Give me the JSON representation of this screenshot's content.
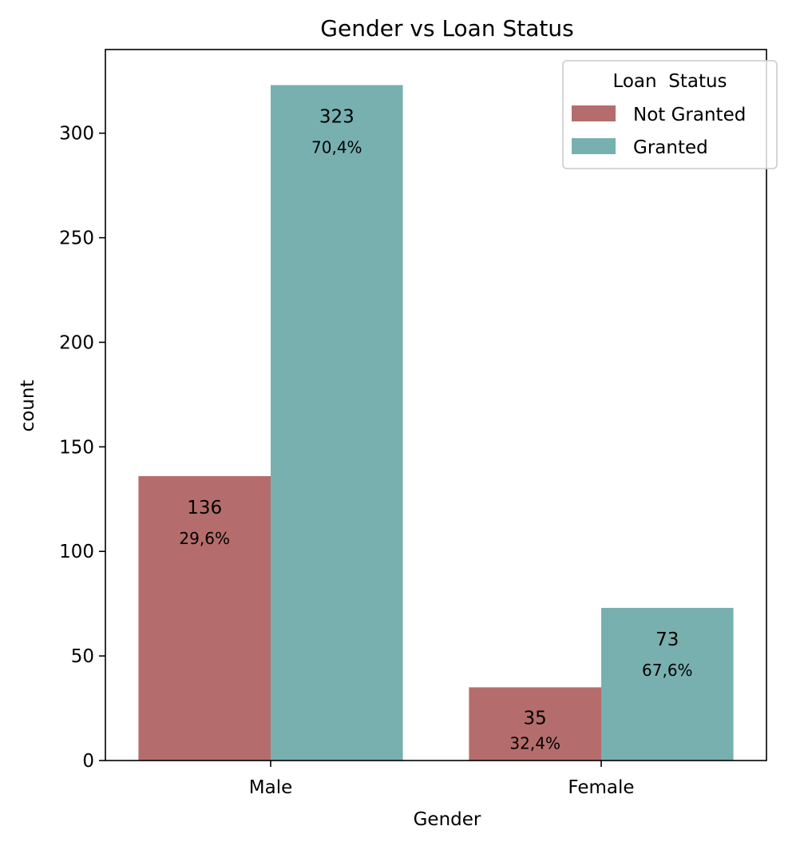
{
  "chart_data": {
    "type": "bar",
    "title": "Gender vs Loan Status",
    "xlabel": "Gender",
    "ylabel": "count",
    "categories": [
      "Male",
      "Female"
    ],
    "series": [
      {
        "name": "Not Granted",
        "color": "#b46d6c",
        "values": [
          136,
          35
        ],
        "percent_labels": [
          "29,6%",
          "32,4%"
        ]
      },
      {
        "name": "Granted",
        "color": "#78b0b0",
        "values": [
          323,
          73
        ],
        "percent_labels": [
          "70,4%",
          "67,6%"
        ]
      }
    ],
    "ylim": [
      0,
      340
    ],
    "yticks": [
      0,
      50,
      100,
      150,
      200,
      250,
      300
    ],
    "grid": false,
    "legend": {
      "title": "Loan  Status",
      "placement": "top-right"
    }
  }
}
